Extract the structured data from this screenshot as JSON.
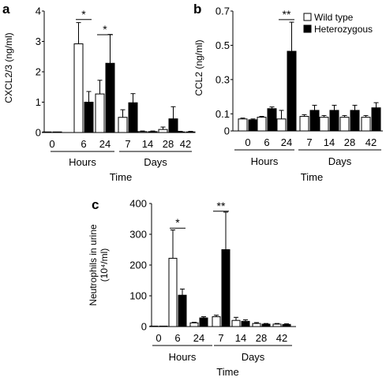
{
  "legend": {
    "items": [
      {
        "label": "Wild type",
        "fill": "#ffffff"
      },
      {
        "label": "Heterozygous",
        "fill": "#000000"
      }
    ],
    "placement": "top-right of panel b"
  },
  "significance_marks": {
    "single": "*",
    "double": "**"
  },
  "chart_data": [
    {
      "panel": "a",
      "type": "bar",
      "ylabel": "CXCL2/3 (ng/ml)",
      "xlabel": "Time",
      "ylim": [
        0,
        4
      ],
      "yticks": [
        "0",
        "1",
        "2",
        "3",
        "4"
      ],
      "yticks_values": [
        0,
        1,
        2,
        3,
        4
      ],
      "categories": [
        "0",
        "6",
        "24",
        "7",
        "14",
        "28",
        "42"
      ],
      "groups": [
        {
          "label": "Hours",
          "categories": [
            "0",
            "6",
            "24"
          ]
        },
        {
          "label": "Days",
          "categories": [
            "7",
            "14",
            "28",
            "42"
          ]
        }
      ],
      "series": [
        {
          "name": "Wild type",
          "values": [
            0.02,
            2.92,
            1.27,
            0.5,
            0.03,
            0.1,
            0.02
          ],
          "errors": [
            0,
            0.7,
            0.45,
            0.25,
            0.02,
            0.08,
            0.02
          ]
        },
        {
          "name": "Heterozygous",
          "values": [
            0.02,
            1.0,
            2.28,
            0.98,
            0.03,
            0.45,
            0.02
          ],
          "errors": [
            0,
            0.35,
            0.95,
            0.3,
            0.02,
            0.4,
            0.02
          ]
        }
      ],
      "significance": [
        {
          "category": "6",
          "label": "*",
          "y": 3.72
        },
        {
          "category": "24",
          "label": "*",
          "y": 3.22
        }
      ]
    },
    {
      "panel": "b",
      "type": "bar",
      "ylabel": "CCL2 (ng/ml)",
      "xlabel": "Time",
      "ylim": [
        0,
        0.7
      ],
      "yticks": [
        "0",
        "0.1",
        "0.3",
        "0.5",
        "0.7"
      ],
      "yticks_values": [
        0,
        0.1,
        0.3,
        0.5,
        0.7
      ],
      "categories": [
        "0",
        "6",
        "24",
        "7",
        "14",
        "28",
        "42"
      ],
      "groups": [
        {
          "label": "Hours",
          "categories": [
            "0",
            "6",
            "24"
          ]
        },
        {
          "label": "Days",
          "categories": [
            "7",
            "14",
            "28",
            "42"
          ]
        }
      ],
      "series": [
        {
          "name": "Wild type",
          "values": [
            0.07,
            0.08,
            0.07,
            0.085,
            0.08,
            0.08,
            0.08
          ],
          "errors": [
            0.005,
            0.005,
            0.05,
            0.01,
            0.01,
            0.01,
            0.01
          ]
        },
        {
          "name": "Heterozygous",
          "values": [
            0.065,
            0.13,
            0.465,
            0.12,
            0.12,
            0.12,
            0.135
          ],
          "errors": [
            0.005,
            0.01,
            0.17,
            0.03,
            0.03,
            0.03,
            0.03
          ]
        }
      ],
      "significance": [
        {
          "category": "24",
          "label": "**",
          "y": 0.65
        }
      ]
    },
    {
      "panel": "c",
      "type": "bar",
      "ylabel": "Neutrophils in urine (10⁴/ml)",
      "xlabel": "Time",
      "ylim": [
        0,
        400
      ],
      "yticks": [
        "0",
        "100",
        "200",
        "300",
        "400"
      ],
      "yticks_values": [
        0,
        100,
        200,
        300,
        400
      ],
      "categories": [
        "0",
        "6",
        "24",
        "7",
        "14",
        "28",
        "42"
      ],
      "groups": [
        {
          "label": "Hours",
          "categories": [
            "0",
            "6",
            "24"
          ]
        },
        {
          "label": "Days",
          "categories": [
            "7",
            "14",
            "28",
            "42"
          ]
        }
      ],
      "series": [
        {
          "name": "Wild type",
          "values": [
            1,
            222,
            12,
            32,
            20,
            10,
            8
          ],
          "errors": [
            0,
            92,
            2,
            5,
            10,
            3,
            2
          ]
        },
        {
          "name": "Heterozygous",
          "values": [
            1,
            102,
            28,
            250,
            17,
            8,
            7
          ],
          "errors": [
            0,
            20,
            4,
            122,
            5,
            2,
            2
          ]
        }
      ],
      "significance": [
        {
          "category": "6",
          "label": "*",
          "y": 320
        },
        {
          "category": "7",
          "label": "**",
          "y": 375
        }
      ]
    }
  ]
}
